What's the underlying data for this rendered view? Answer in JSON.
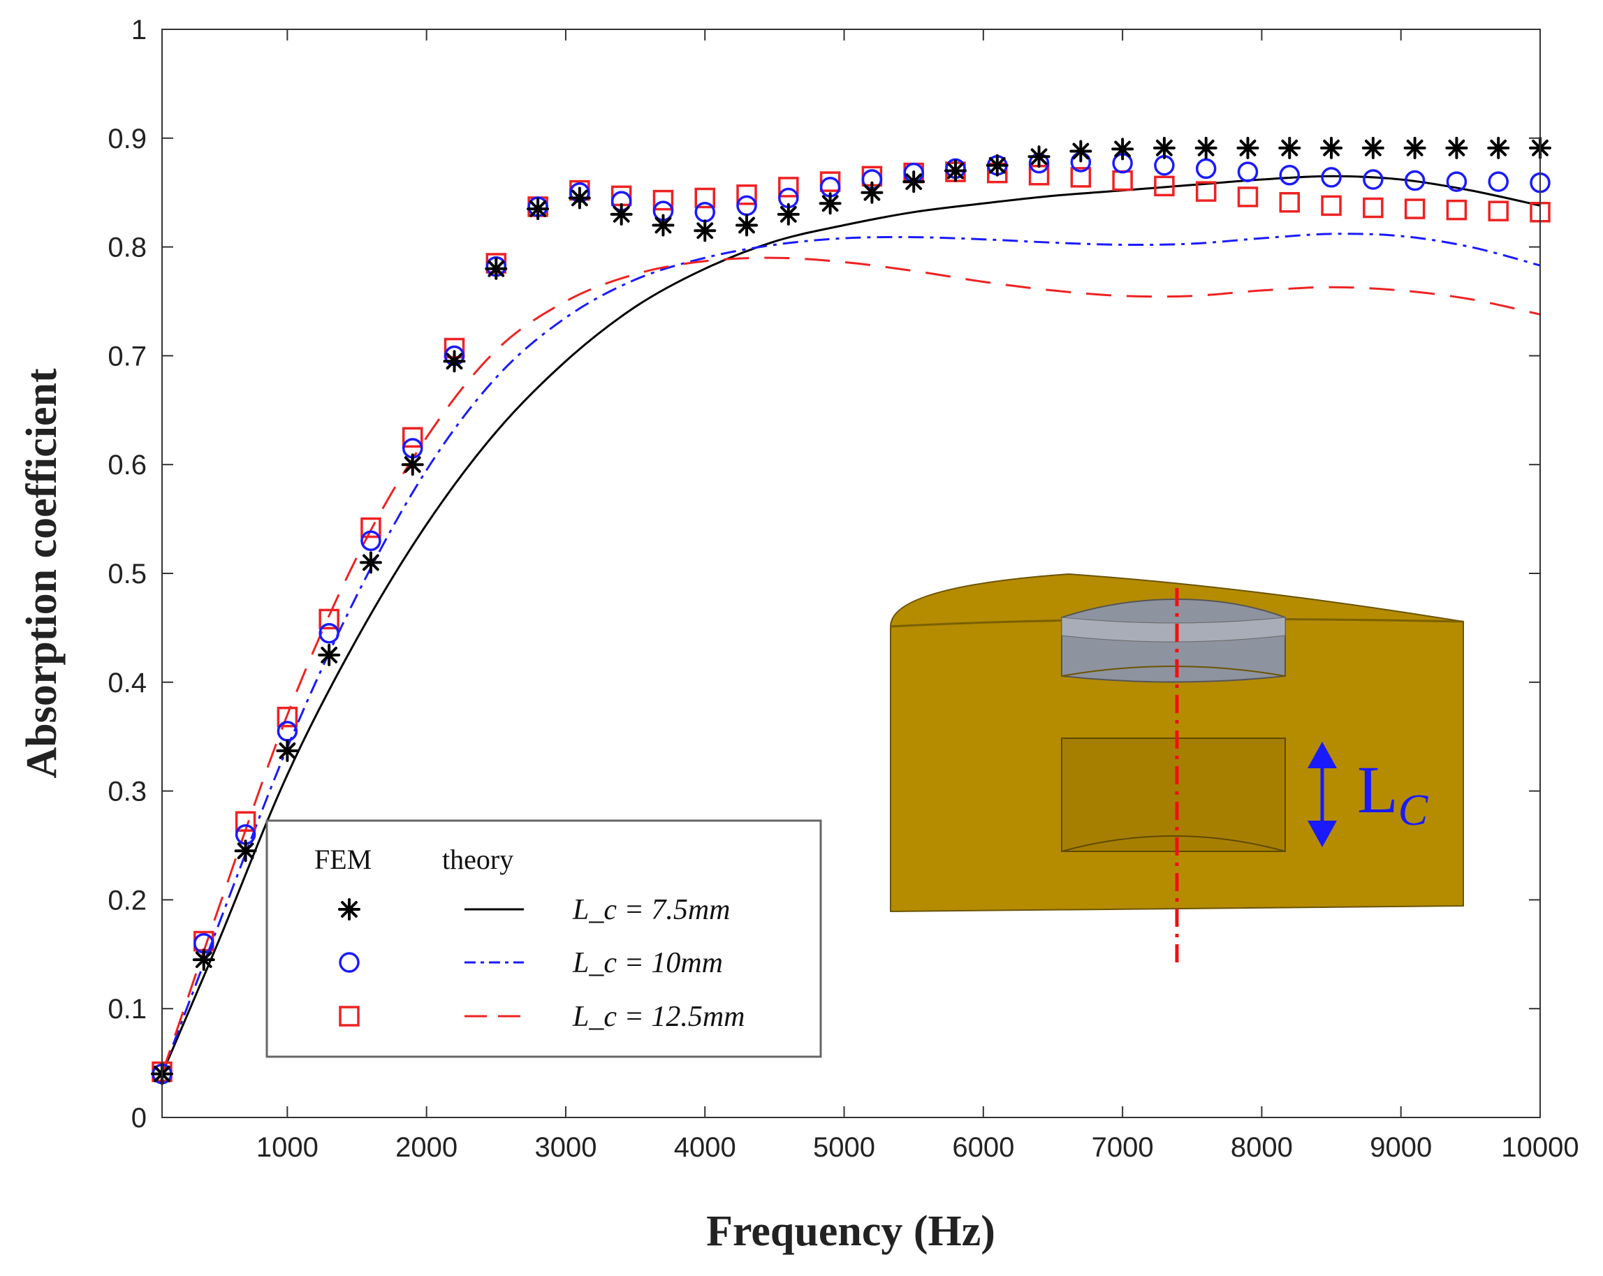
{
  "chart_data": {
    "type": "line",
    "title": "",
    "xlabel": "Frequency (Hz)",
    "ylabel": "Absorption coefficient",
    "xlim": [
      100,
      10000
    ],
    "ylim": [
      0,
      1
    ],
    "xticks": [
      1000,
      2000,
      3000,
      4000,
      5000,
      6000,
      7000,
      8000,
      9000,
      10000
    ],
    "yticks": [
      0,
      0.1,
      0.2,
      0.3,
      0.4,
      0.5,
      0.6,
      0.7,
      0.8,
      0.9,
      1
    ],
    "grid": false,
    "legend": {
      "position": "bottom-left",
      "header_fem": "FEM",
      "header_theory": "theory",
      "entries": [
        "L_c = 7.5mm",
        "L_c = 10mm",
        "L_c = 12.5mm"
      ]
    },
    "fem_x": [
      100,
      400,
      700,
      1000,
      1300,
      1600,
      1900,
      2200,
      2500,
      2800,
      3100,
      3400,
      3700,
      4000,
      4300,
      4600,
      4900,
      5200,
      5500,
      5800,
      6100,
      6400,
      6700,
      7000,
      7300,
      7600,
      7900,
      8200,
      8500,
      8800,
      9100,
      9400,
      9700,
      10000
    ],
    "series": [
      {
        "name": "L_c = 7.5mm",
        "color": "#000000",
        "marker": "star",
        "line": "solid",
        "fem": [
          0.04,
          0.145,
          0.245,
          0.337,
          0.425,
          0.51,
          0.6,
          0.695,
          0.78,
          0.835,
          0.845,
          0.83,
          0.82,
          0.815,
          0.82,
          0.83,
          0.84,
          0.85,
          0.86,
          0.87,
          0.875,
          0.883,
          0.888,
          0.89,
          0.891,
          0.891,
          0.891,
          0.891,
          0.891,
          0.891,
          0.891,
          0.891,
          0.891,
          0.891
        ],
        "theory_x": [
          100,
          500,
          1000,
          1500,
          2000,
          2500,
          3000,
          3500,
          4000,
          4500,
          5000,
          5500,
          6000,
          6500,
          7000,
          7500,
          8000,
          8500,
          9000,
          9500,
          10000
        ],
        "theory": [
          0.04,
          0.16,
          0.315,
          0.44,
          0.545,
          0.63,
          0.695,
          0.745,
          0.78,
          0.805,
          0.82,
          0.832,
          0.84,
          0.847,
          0.852,
          0.857,
          0.862,
          0.865,
          0.862,
          0.852,
          0.838
        ]
      },
      {
        "name": "L_c = 10mm",
        "color": "#1a1aff",
        "marker": "circle",
        "line": "dashdot",
        "fem": [
          0.04,
          0.16,
          0.26,
          0.355,
          0.445,
          0.53,
          0.615,
          0.7,
          0.782,
          0.837,
          0.85,
          0.842,
          0.833,
          0.832,
          0.838,
          0.845,
          0.855,
          0.862,
          0.868,
          0.872,
          0.875,
          0.877,
          0.878,
          0.877,
          0.875,
          0.872,
          0.869,
          0.866,
          0.864,
          0.862,
          0.861,
          0.86,
          0.86,
          0.859
        ],
        "theory_x": [
          100,
          500,
          1000,
          1500,
          2000,
          2500,
          3000,
          3500,
          4000,
          4500,
          5000,
          5500,
          6000,
          6500,
          7000,
          7500,
          8000,
          8500,
          9000,
          9500,
          10000
        ],
        "theory": [
          0.04,
          0.175,
          0.34,
          0.48,
          0.595,
          0.68,
          0.735,
          0.77,
          0.79,
          0.802,
          0.808,
          0.809,
          0.807,
          0.804,
          0.802,
          0.803,
          0.808,
          0.812,
          0.81,
          0.8,
          0.783
        ]
      },
      {
        "name": "L_c = 12.5mm",
        "color": "#ee2222",
        "marker": "square",
        "line": "dashed",
        "fem": [
          0.042,
          0.162,
          0.272,
          0.368,
          0.458,
          0.542,
          0.625,
          0.707,
          0.785,
          0.837,
          0.852,
          0.847,
          0.843,
          0.845,
          0.848,
          0.855,
          0.86,
          0.865,
          0.868,
          0.869,
          0.868,
          0.866,
          0.864,
          0.861,
          0.856,
          0.851,
          0.846,
          0.841,
          0.838,
          0.836,
          0.835,
          0.834,
          0.833,
          0.832
        ],
        "theory_x": [
          100,
          500,
          1000,
          1500,
          2000,
          2500,
          3000,
          3500,
          4000,
          4500,
          5000,
          5500,
          6000,
          6500,
          7000,
          7500,
          8000,
          8500,
          9000,
          9500,
          10000
        ],
        "theory": [
          0.04,
          0.19,
          0.37,
          0.515,
          0.625,
          0.705,
          0.75,
          0.775,
          0.787,
          0.79,
          0.786,
          0.778,
          0.768,
          0.76,
          0.755,
          0.755,
          0.76,
          0.763,
          0.76,
          0.752,
          0.738
        ]
      }
    ],
    "inset": {
      "label_main": "L",
      "label_sub": "C"
    }
  }
}
